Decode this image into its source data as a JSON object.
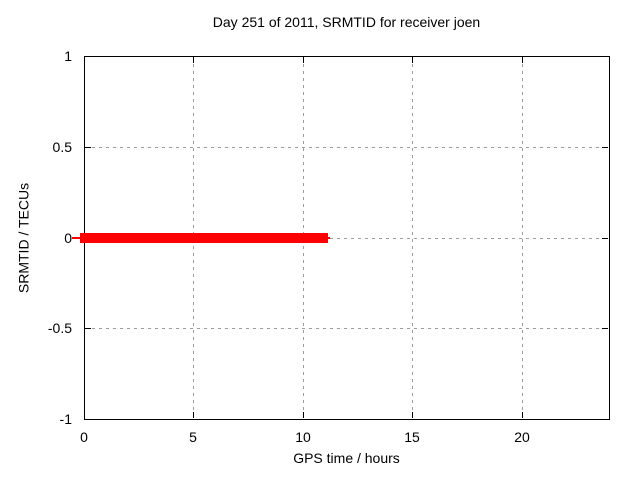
{
  "chart_data": {
    "type": "line",
    "title": "Day 251 of 2011, SRMTID for receiver joen",
    "xlabel": "GPS time / hours",
    "ylabel": "SRMTID / TECUs",
    "xlim": [
      0,
      24
    ],
    "ylim": [
      -1,
      1
    ],
    "x_ticks": [
      0,
      5,
      10,
      15,
      20
    ],
    "y_ticks": [
      -1,
      -0.5,
      0,
      0.5,
      1
    ],
    "grid": true,
    "legend": "none",
    "series": [
      {
        "name": "SRMTID",
        "color": "#ff0000",
        "style": "thick horizontal segment at constant value",
        "y_value": 0,
        "x_start": 0,
        "x_end": 11.05
      }
    ],
    "colors": {
      "axis": "#000000",
      "grid": "#9c9c9c",
      "background": "#ffffff",
      "text": "#000000"
    }
  }
}
